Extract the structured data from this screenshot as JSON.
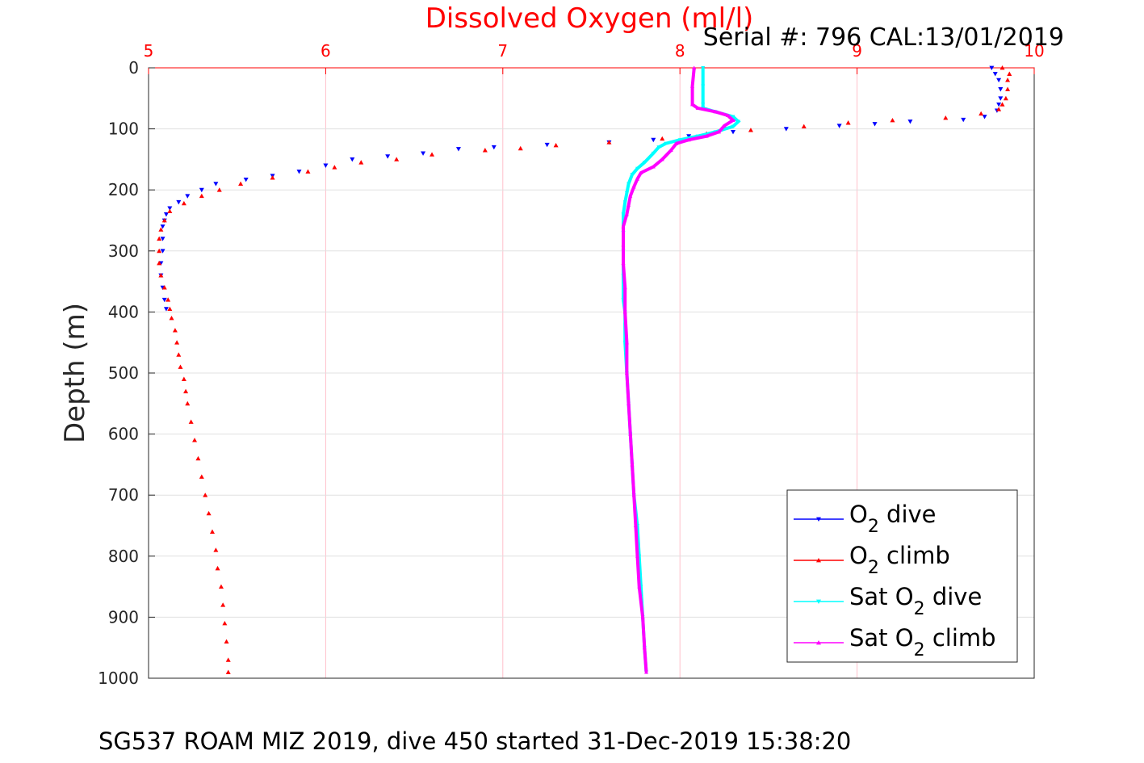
{
  "chart_data": {
    "type": "scatter",
    "title": "Dissolved Oxygen (ml/l)",
    "annotation": "Serial #: 796  CAL:13/01/2019",
    "xlabel": "Dissolved Oxygen (ml/l)",
    "ylabel": "Depth (m)",
    "caption": "SG537 ROAM MIZ 2019, dive 450 started 31-Dec-2019 15:38:20",
    "xlim": [
      5,
      10
    ],
    "ylim": [
      0,
      1000
    ],
    "y_reversed": true,
    "x_axis_position": "top",
    "xticks": [
      5,
      6,
      7,
      8,
      9,
      10
    ],
    "yticks": [
      0,
      100,
      200,
      300,
      400,
      500,
      600,
      700,
      800,
      900,
      1000
    ],
    "grid": true,
    "legend_position": "bottom-right",
    "series": [
      {
        "name": "O2 dive",
        "legend_main": "O",
        "legend_sub": "2",
        "legend_suffix": " dive",
        "color": "#0000ff",
        "marker": "triangle-down",
        "points": [
          [
            9.76,
            0
          ],
          [
            9.78,
            10
          ],
          [
            9.8,
            20
          ],
          [
            9.81,
            35
          ],
          [
            9.81,
            50
          ],
          [
            9.8,
            60
          ],
          [
            9.79,
            70
          ],
          [
            9.72,
            80
          ],
          [
            9.6,
            85
          ],
          [
            9.3,
            88
          ],
          [
            9.1,
            92
          ],
          [
            8.9,
            95
          ],
          [
            8.6,
            100
          ],
          [
            8.3,
            105
          ],
          [
            8.05,
            112
          ],
          [
            7.85,
            118
          ],
          [
            7.6,
            122
          ],
          [
            7.25,
            126
          ],
          [
            6.95,
            130
          ],
          [
            6.75,
            133
          ],
          [
            6.55,
            140
          ],
          [
            6.35,
            145
          ],
          [
            6.15,
            150
          ],
          [
            6.0,
            160
          ],
          [
            5.85,
            170
          ],
          [
            5.7,
            177
          ],
          [
            5.55,
            183
          ],
          [
            5.38,
            190
          ],
          [
            5.3,
            200
          ],
          [
            5.22,
            210
          ],
          [
            5.17,
            220
          ],
          [
            5.12,
            230
          ],
          [
            5.1,
            240
          ],
          [
            5.09,
            250
          ],
          [
            5.08,
            260
          ],
          [
            5.08,
            280
          ],
          [
            5.08,
            300
          ],
          [
            5.07,
            320
          ],
          [
            5.07,
            340
          ],
          [
            5.08,
            360
          ],
          [
            5.09,
            380
          ],
          [
            5.1,
            395
          ]
        ]
      },
      {
        "name": "O2 climb",
        "legend_main": "O",
        "legend_sub": "2",
        "legend_suffix": " climb",
        "color": "#ff0000",
        "marker": "triangle-up",
        "points": [
          [
            9.82,
            0
          ],
          [
            9.86,
            10
          ],
          [
            9.85,
            20
          ],
          [
            9.85,
            35
          ],
          [
            9.84,
            50
          ],
          [
            9.82,
            60
          ],
          [
            9.8,
            68
          ],
          [
            9.7,
            75
          ],
          [
            9.5,
            82
          ],
          [
            9.2,
            86
          ],
          [
            8.95,
            90
          ],
          [
            8.7,
            96
          ],
          [
            8.4,
            102
          ],
          [
            8.15,
            108
          ],
          [
            7.9,
            116
          ],
          [
            7.6,
            122
          ],
          [
            7.3,
            127
          ],
          [
            7.1,
            132
          ],
          [
            6.9,
            135
          ],
          [
            6.6,
            142
          ],
          [
            6.4,
            150
          ],
          [
            6.2,
            155
          ],
          [
            6.05,
            163
          ],
          [
            5.9,
            170
          ],
          [
            5.7,
            180
          ],
          [
            5.52,
            190
          ],
          [
            5.4,
            200
          ],
          [
            5.3,
            210
          ],
          [
            5.2,
            222
          ],
          [
            5.12,
            235
          ],
          [
            5.09,
            250
          ],
          [
            5.07,
            265
          ],
          [
            5.06,
            280
          ],
          [
            5.06,
            300
          ],
          [
            5.06,
            320
          ],
          [
            5.07,
            340
          ],
          [
            5.09,
            360
          ],
          [
            5.11,
            380
          ],
          [
            5.12,
            395
          ],
          [
            5.13,
            410
          ],
          [
            5.15,
            430
          ],
          [
            5.16,
            450
          ],
          [
            5.17,
            470
          ],
          [
            5.18,
            490
          ],
          [
            5.2,
            510
          ],
          [
            5.21,
            530
          ],
          [
            5.22,
            550
          ],
          [
            5.24,
            580
          ],
          [
            5.26,
            610
          ],
          [
            5.28,
            640
          ],
          [
            5.3,
            670
          ],
          [
            5.32,
            700
          ],
          [
            5.34,
            730
          ],
          [
            5.36,
            760
          ],
          [
            5.38,
            790
          ],
          [
            5.39,
            820
          ],
          [
            5.41,
            850
          ],
          [
            5.42,
            880
          ],
          [
            5.43,
            910
          ],
          [
            5.44,
            940
          ],
          [
            5.45,
            970
          ],
          [
            5.45,
            990
          ]
        ]
      },
      {
        "name": "Sat O2 dive",
        "legend_main": "Sat O",
        "legend_sub": "2",
        "legend_suffix": " dive",
        "color": "#00ffff",
        "marker": "triangle-down",
        "points": [
          [
            8.13,
            0
          ],
          [
            8.13,
            30
          ],
          [
            8.13,
            60
          ],
          [
            8.13,
            66
          ],
          [
            8.2,
            72
          ],
          [
            8.3,
            80
          ],
          [
            8.33,
            88
          ],
          [
            8.3,
            96
          ],
          [
            8.2,
            105
          ],
          [
            8.1,
            112
          ],
          [
            8.0,
            118
          ],
          [
            7.92,
            124
          ],
          [
            7.88,
            130
          ],
          [
            7.85,
            140
          ],
          [
            7.8,
            155
          ],
          [
            7.76,
            165
          ],
          [
            7.73,
            175
          ],
          [
            7.71,
            190
          ],
          [
            7.7,
            205
          ],
          [
            7.69,
            220
          ],
          [
            7.68,
            240
          ],
          [
            7.68,
            270
          ],
          [
            7.68,
            300
          ],
          [
            7.68,
            340
          ],
          [
            7.68,
            380
          ],
          [
            7.69,
            400
          ],
          [
            7.69,
            450
          ],
          [
            7.7,
            500
          ],
          [
            7.71,
            550
          ],
          [
            7.72,
            600
          ],
          [
            7.73,
            650
          ],
          [
            7.74,
            700
          ],
          [
            7.76,
            750
          ],
          [
            7.77,
            800
          ],
          [
            7.78,
            850
          ],
          [
            7.79,
            900
          ],
          [
            7.8,
            950
          ],
          [
            7.81,
            990
          ]
        ]
      },
      {
        "name": "Sat O2 climb",
        "legend_main": "Sat O",
        "legend_sub": "2",
        "legend_suffix": " climb",
        "color": "#ff00ff",
        "marker": "triangle-up",
        "points": [
          [
            8.08,
            0
          ],
          [
            8.07,
            30
          ],
          [
            8.07,
            60
          ],
          [
            8.1,
            66
          ],
          [
            8.2,
            72
          ],
          [
            8.27,
            78
          ],
          [
            8.3,
            86
          ],
          [
            8.25,
            95
          ],
          [
            8.22,
            105
          ],
          [
            8.15,
            112
          ],
          [
            8.05,
            118
          ],
          [
            7.98,
            124
          ],
          [
            7.95,
            135
          ],
          [
            7.9,
            150
          ],
          [
            7.85,
            162
          ],
          [
            7.78,
            172
          ],
          [
            7.76,
            182
          ],
          [
            7.74,
            195
          ],
          [
            7.72,
            210
          ],
          [
            7.71,
            225
          ],
          [
            7.7,
            240
          ],
          [
            7.68,
            260
          ],
          [
            7.68,
            290
          ],
          [
            7.68,
            320
          ],
          [
            7.69,
            360
          ],
          [
            7.69,
            400
          ],
          [
            7.7,
            450
          ],
          [
            7.7,
            500
          ],
          [
            7.71,
            550
          ],
          [
            7.72,
            600
          ],
          [
            7.73,
            650
          ],
          [
            7.74,
            700
          ],
          [
            7.75,
            750
          ],
          [
            7.76,
            800
          ],
          [
            7.77,
            850
          ],
          [
            7.79,
            900
          ],
          [
            7.8,
            950
          ],
          [
            7.81,
            990
          ]
        ]
      }
    ]
  }
}
